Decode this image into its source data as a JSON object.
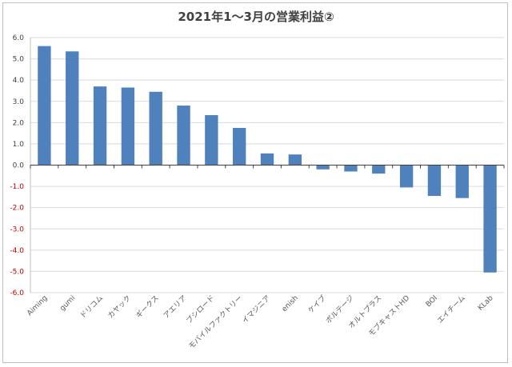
{
  "chart_data": {
    "type": "bar",
    "title": "2021年1～3月の営業利益②",
    "xlabel": "",
    "ylabel": "",
    "ylim": [
      -6.0,
      6.0
    ],
    "yticks": [
      "6.0",
      "5.0",
      "4.0",
      "3.0",
      "2.0",
      "1.0",
      "0.0",
      "-1.0",
      "-2.0",
      "-3.0",
      "-4.0",
      "-5.0",
      "-6.0"
    ],
    "grid": true,
    "legend": "none",
    "colors": {
      "bar": "#4f81bd",
      "negative_tick": "#c00000",
      "positive_tick": "#404040",
      "grid": "#d9d9d9"
    },
    "categories": [
      "Aiming",
      "gumi",
      "ドリコム",
      "カヤック",
      "ギークス",
      "アエリア",
      "ブシロード",
      "モバイルファクトリー",
      "イマジニア",
      "enish",
      "ケイブ",
      "ボルテージ",
      "オルトプラス",
      "モブキャストHD",
      "BOI",
      "エイチーム",
      "KLab"
    ],
    "values": [
      5.6,
      5.35,
      3.7,
      3.65,
      3.45,
      2.8,
      2.35,
      1.75,
      0.55,
      0.5,
      -0.2,
      -0.3,
      -0.4,
      -1.05,
      -1.45,
      -1.55,
      -5.05
    ]
  }
}
